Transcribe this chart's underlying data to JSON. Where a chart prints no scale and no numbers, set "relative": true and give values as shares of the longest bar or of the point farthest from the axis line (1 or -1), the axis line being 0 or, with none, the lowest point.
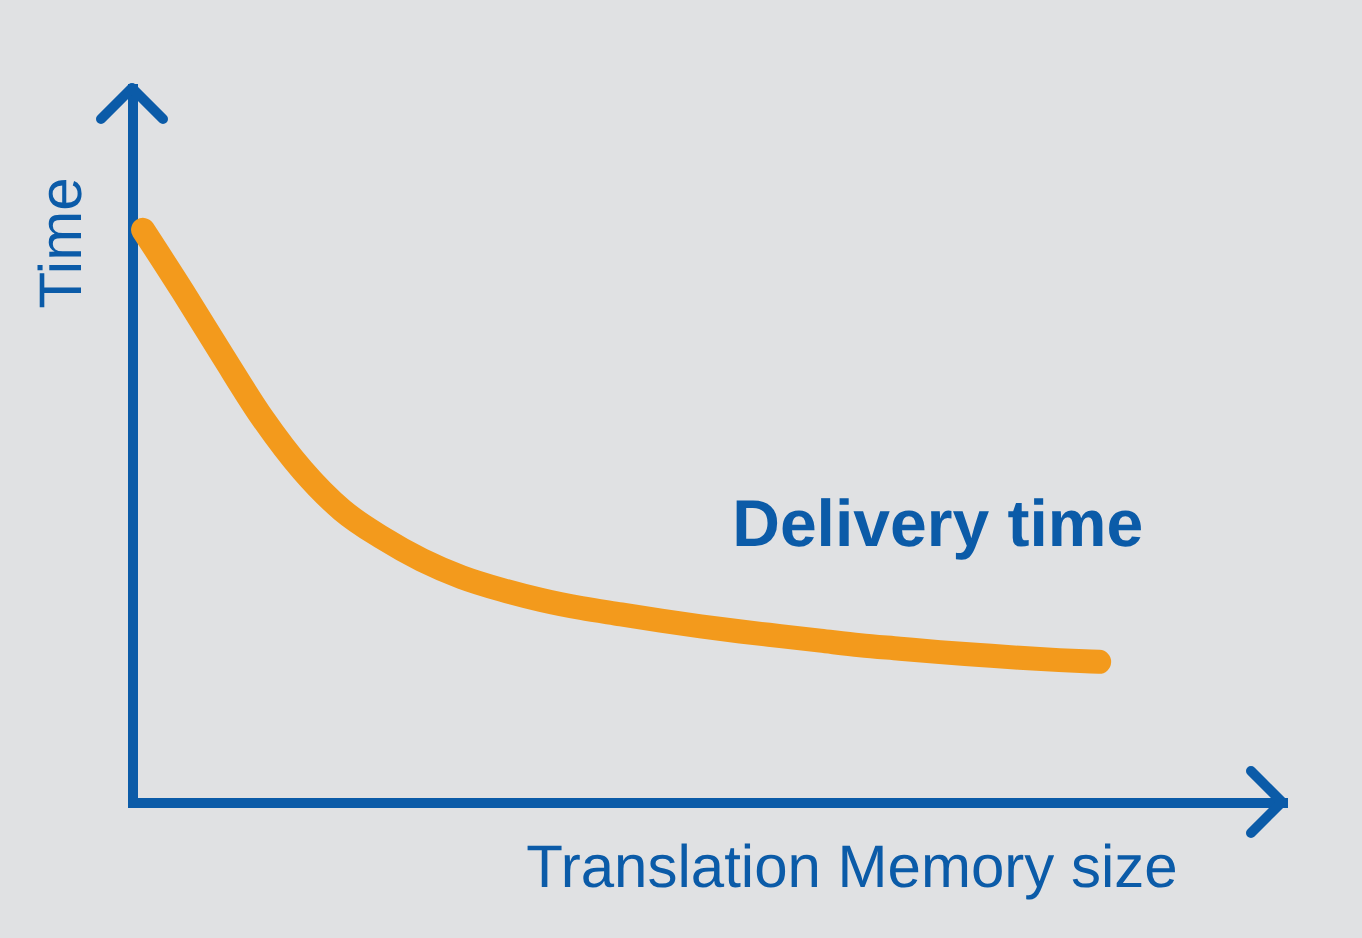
{
  "chart_data": {
    "type": "line",
    "relative": true,
    "xlabel": "Translation Memory size",
    "ylabel": "Time",
    "categories": [
      null,
      null,
      null,
      null,
      null,
      null,
      null,
      null,
      null,
      null,
      null,
      null,
      null,
      null,
      null,
      null,
      null,
      null,
      null,
      null,
      null,
      null,
      null,
      null,
      null
    ],
    "series": [
      {
        "name": "Delivery time",
        "color": "#f39a1c",
        "values": [
          1,
          0.892,
          0.78,
          0.671,
          0.58,
          0.51,
          0.462,
          0.423,
          0.393,
          0.371,
          0.353,
          0.339,
          0.328,
          0.317,
          0.307,
          0.298,
          0.29,
          0.282,
          0.274,
          0.268,
          0.262,
          0.257,
          0.252,
          0.248,
          0.245
        ]
      }
    ],
    "grid": false,
    "legend": false
  }
}
